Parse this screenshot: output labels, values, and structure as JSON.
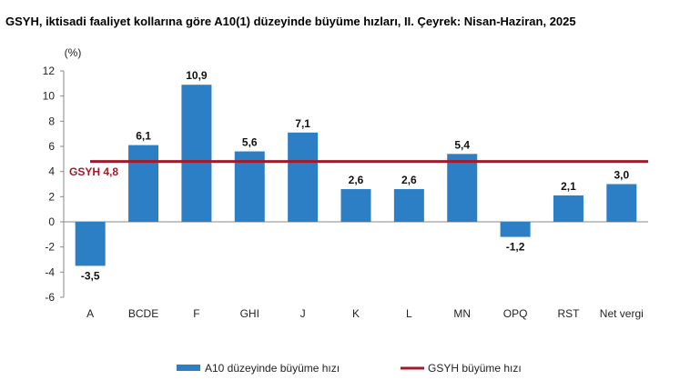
{
  "chart_data": {
    "type": "bar",
    "title": "GSYH, iktisadi faaliyet kollarına göre A10(1) düzeyinde büyüme hızları, II. Çeyrek: Nisan-Haziran, 2025",
    "ylabel": "(%)",
    "xlabel": "",
    "ylim": [
      -6,
      12
    ],
    "yticks": [
      -6,
      -4,
      -2,
      0,
      2,
      4,
      6,
      8,
      10,
      12
    ],
    "categories": [
      "A",
      "BCDE",
      "F",
      "GHI",
      "J",
      "K",
      "L",
      "MN",
      "OPQ",
      "RST",
      "Net vergi"
    ],
    "series": [
      {
        "name": "A10 düzeyinde büyüme hızı",
        "values": [
          -3.5,
          6.1,
          10.9,
          5.6,
          7.1,
          2.6,
          2.6,
          5.4,
          -1.2,
          2.1,
          3.0
        ],
        "labels": [
          "-3,5",
          "6,1",
          "10,9",
          "5,6",
          "7,1",
          "2,6",
          "2,6",
          "5,4",
          "-1,2",
          "2,1",
          "3,0"
        ],
        "color": "#2c7fc4"
      }
    ],
    "reference_line": {
      "name": "GSYH büyüme hızı",
      "value": 4.8,
      "label": "GSYH 4,8",
      "color": "#a3192a"
    },
    "grid": false,
    "legend_position": "bottom"
  }
}
